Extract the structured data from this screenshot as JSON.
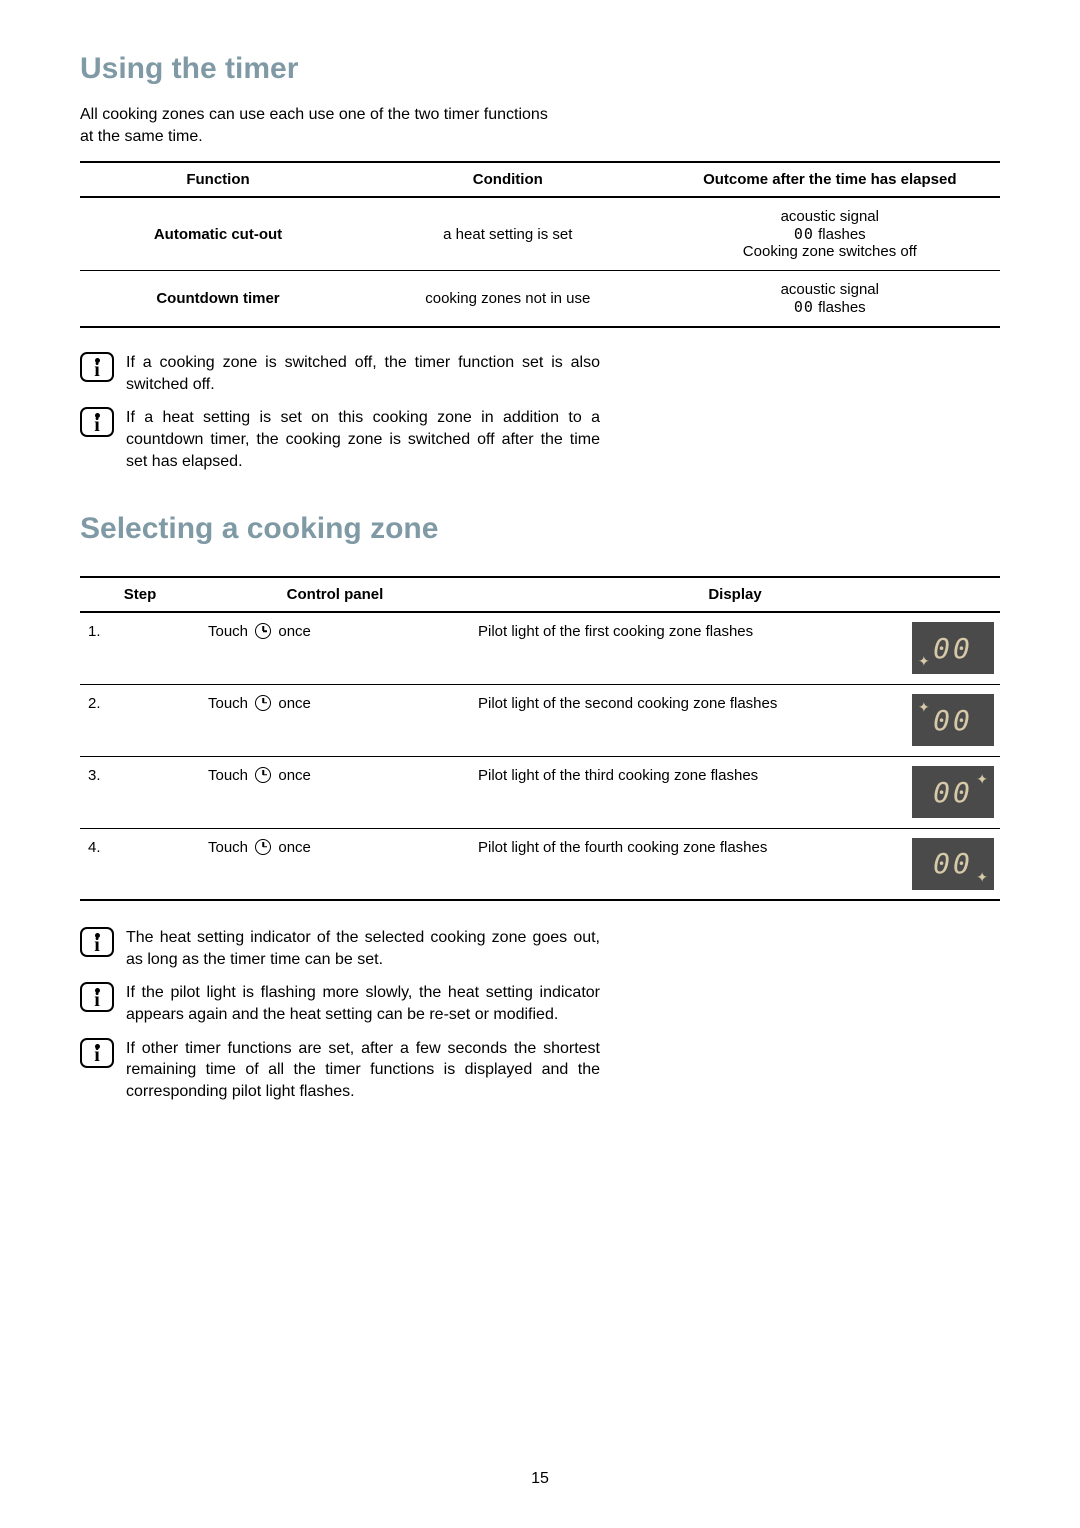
{
  "section1": {
    "title": "Using the timer",
    "intro": "All cooking zones can use each use one of the two timer functions at the same time."
  },
  "funcTable": {
    "headers": [
      "Function",
      "Condition",
      "Outcome after the time has elapsed"
    ],
    "rows": [
      {
        "func": "Automatic cut-out",
        "cond": "a heat setting is set",
        "out1": "acoustic signal",
        "out2_pre": "00",
        "out2_post": " flashes",
        "out3": "Cooking zone switches off"
      },
      {
        "func": "Countdown timer",
        "cond": "cooking zones not in use",
        "out1": "acoustic signal",
        "out2_pre": "00",
        "out2_post": " flashes",
        "out3": ""
      }
    ]
  },
  "info1": "If a cooking zone is switched off, the timer function set is also switched off.",
  "info2": "If a heat setting is set on this cooking zone in addition to a countdown timer, the cooking zone is switched off after the time set has elapsed.",
  "section2": {
    "title": "Selecting a cooking zone"
  },
  "stepsTable": {
    "headers": [
      "Step",
      "Control panel",
      "Display"
    ],
    "rows": [
      {
        "n": "1.",
        "cp_pre": "Touch ",
        "cp_post": " once",
        "disp": "Pilot light of the first cooking zone flashes",
        "seg": "00",
        "dotPos": "bl"
      },
      {
        "n": "2.",
        "cp_pre": "Touch ",
        "cp_post": " once",
        "disp": "Pilot light of the second cooking zone flashes",
        "seg": "00",
        "dotPos": "tl"
      },
      {
        "n": "3.",
        "cp_pre": "Touch ",
        "cp_post": " once",
        "disp": "Pilot light of the third cooking zone flashes",
        "seg": "00",
        "dotPos": "tr"
      },
      {
        "n": "4.",
        "cp_pre": "Touch ",
        "cp_post": " once",
        "disp": "Pilot light of the fourth cooking zone flashes",
        "seg": "00",
        "dotPos": "br"
      }
    ]
  },
  "info3": "The heat setting indicator of the selected cooking zone goes out, as long as the timer time can be set.",
  "info4": "If the pilot light is flashing more slowly, the heat setting indicator appears again and the heat setting can be re-set or modified.",
  "info5": "If other timer functions are set, after a few seconds the shortest remaining time of all the timer functions is displayed and the corresponding pilot light flashes.",
  "pageNumber": "15",
  "colors": {
    "heading": "#7f9aa5",
    "displayBg": "#4a4a4a",
    "segColor": "#d6c9a8"
  }
}
